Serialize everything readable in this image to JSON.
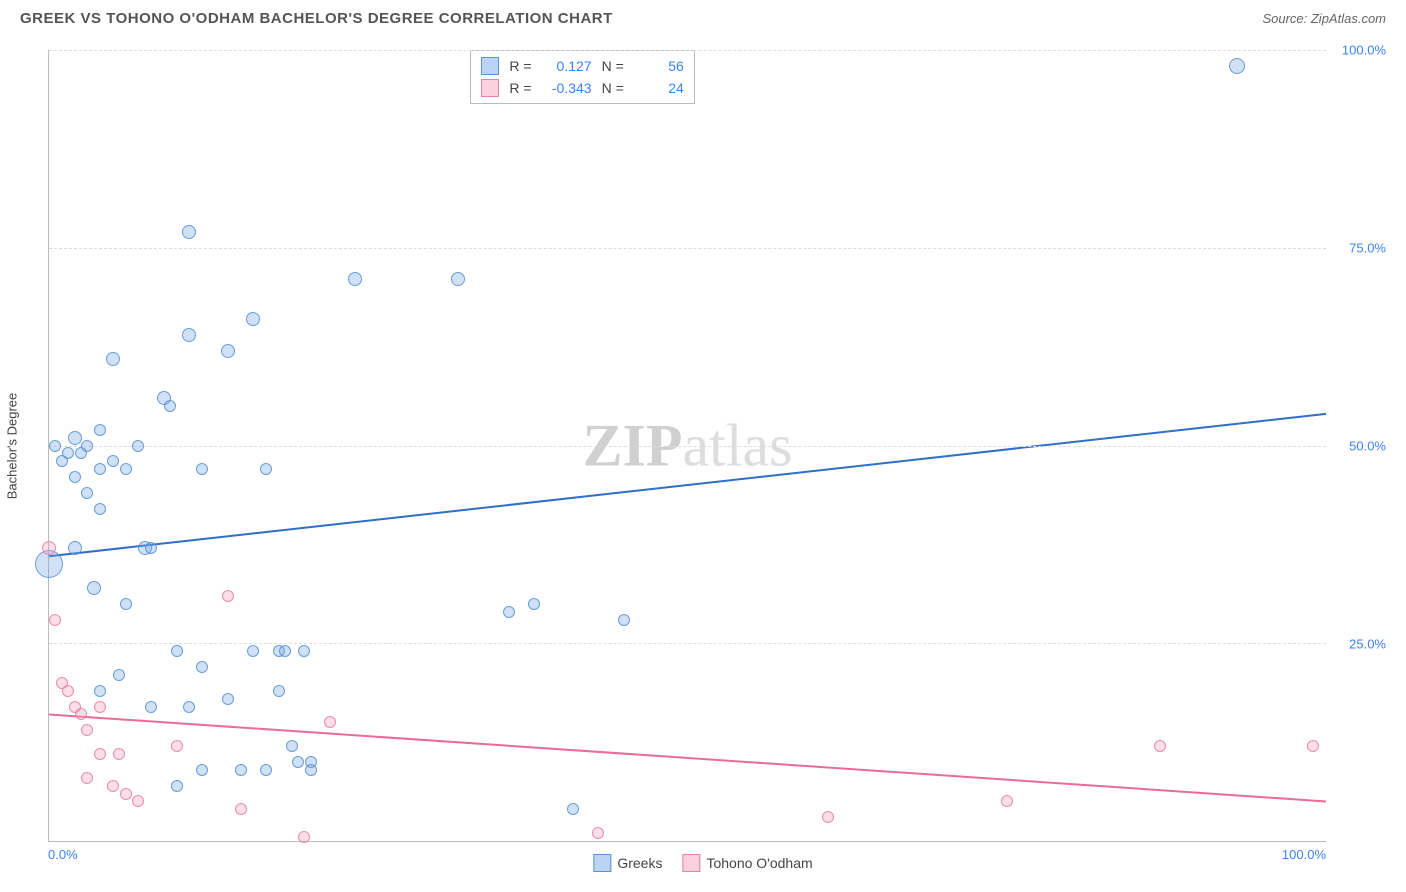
{
  "title": "GREEK VS TOHONO O'ODHAM BACHELOR'S DEGREE CORRELATION CHART",
  "source": "Source: ZipAtlas.com",
  "watermark": {
    "zip": "ZIP",
    "atlas": "atlas"
  },
  "chart": {
    "type": "scatter",
    "xlim": [
      0,
      100
    ],
    "ylim": [
      0,
      100
    ],
    "ygrid": [
      25,
      50,
      75,
      100
    ],
    "yticklabels": [
      "25.0%",
      "50.0%",
      "75.0%",
      "100.0%"
    ],
    "xtick_min": "0.0%",
    "xtick_max": "100.0%",
    "y_axis_title": "Bachelor's Degree",
    "colors": {
      "blue_fill": "rgba(120,170,230,0.35)",
      "blue_stroke": "rgba(80,140,210,0.8)",
      "pink_fill": "rgba(245,160,190,0.35)",
      "pink_stroke": "rgba(230,120,160,0.8)",
      "trend_blue": "#2f6fc4",
      "trend_pink": "#ea6a9a",
      "grid": "#dddddd",
      "axis": "#bbbbbb",
      "tick_text": "#3b82f6"
    },
    "series": [
      {
        "name": "Greeks",
        "cls": "blue",
        "R_label": "R =",
        "R": "0.127",
        "N_label": "N =",
        "N": "56",
        "trend": {
          "y_at_x0": 36,
          "y_at_x100": 54
        },
        "points": [
          {
            "x": 0,
            "y": 35,
            "r": 14
          },
          {
            "x": 0.5,
            "y": 50,
            "r": 6
          },
          {
            "x": 1,
            "y": 48,
            "r": 6
          },
          {
            "x": 1.5,
            "y": 49,
            "r": 6
          },
          {
            "x": 2,
            "y": 51,
            "r": 7
          },
          {
            "x": 2.5,
            "y": 49,
            "r": 6
          },
          {
            "x": 2,
            "y": 37,
            "r": 7
          },
          {
            "x": 2,
            "y": 46,
            "r": 6
          },
          {
            "x": 3,
            "y": 44,
            "r": 6
          },
          {
            "x": 3,
            "y": 50,
            "r": 6
          },
          {
            "x": 3.5,
            "y": 32,
            "r": 7
          },
          {
            "x": 4,
            "y": 52,
            "r": 6
          },
          {
            "x": 4,
            "y": 47,
            "r": 6
          },
          {
            "x": 4,
            "y": 42,
            "r": 6
          },
          {
            "x": 4,
            "y": 19,
            "r": 6
          },
          {
            "x": 5,
            "y": 61,
            "r": 7
          },
          {
            "x": 5,
            "y": 48,
            "r": 6
          },
          {
            "x": 5.5,
            "y": 21,
            "r": 6
          },
          {
            "x": 6,
            "y": 47,
            "r": 6
          },
          {
            "x": 6,
            "y": 30,
            "r": 6
          },
          {
            "x": 7,
            "y": 50,
            "r": 6
          },
          {
            "x": 7.5,
            "y": 37,
            "r": 7
          },
          {
            "x": 8,
            "y": 37,
            "r": 6
          },
          {
            "x": 8,
            "y": 17,
            "r": 6
          },
          {
            "x": 9,
            "y": 56,
            "r": 7
          },
          {
            "x": 9.5,
            "y": 55,
            "r": 6
          },
          {
            "x": 10,
            "y": 24,
            "r": 6
          },
          {
            "x": 10,
            "y": 7,
            "r": 6
          },
          {
            "x": 11,
            "y": 77,
            "r": 7
          },
          {
            "x": 11,
            "y": 64,
            "r": 7
          },
          {
            "x": 11,
            "y": 17,
            "r": 6
          },
          {
            "x": 12,
            "y": 22,
            "r": 6
          },
          {
            "x": 12,
            "y": 47,
            "r": 6
          },
          {
            "x": 12,
            "y": 9,
            "r": 6
          },
          {
            "x": 14,
            "y": 62,
            "r": 7
          },
          {
            "x": 14,
            "y": 18,
            "r": 6
          },
          {
            "x": 15,
            "y": 9,
            "r": 6
          },
          {
            "x": 16,
            "y": 66,
            "r": 7
          },
          {
            "x": 16,
            "y": 24,
            "r": 6
          },
          {
            "x": 17,
            "y": 47,
            "r": 6
          },
          {
            "x": 17,
            "y": 9,
            "r": 6
          },
          {
            "x": 18,
            "y": 19,
            "r": 6
          },
          {
            "x": 18,
            "y": 24,
            "r": 6
          },
          {
            "x": 18.5,
            "y": 24,
            "r": 6
          },
          {
            "x": 19,
            "y": 12,
            "r": 6
          },
          {
            "x": 19.5,
            "y": 10,
            "r": 6
          },
          {
            "x": 20,
            "y": 24,
            "r": 6
          },
          {
            "x": 20.5,
            "y": 10,
            "r": 6
          },
          {
            "x": 20.5,
            "y": 9,
            "r": 6
          },
          {
            "x": 24,
            "y": 71,
            "r": 7
          },
          {
            "x": 32,
            "y": 71,
            "r": 7
          },
          {
            "x": 36,
            "y": 29,
            "r": 6
          },
          {
            "x": 38,
            "y": 30,
            "r": 6
          },
          {
            "x": 41,
            "y": 4,
            "r": 6
          },
          {
            "x": 45,
            "y": 28,
            "r": 6
          },
          {
            "x": 93,
            "y": 98,
            "r": 8
          }
        ]
      },
      {
        "name": "Tohono O'odham",
        "cls": "pink",
        "R_label": "R =",
        "R": "-0.343",
        "N_label": "N =",
        "N": "24",
        "trend": {
          "y_at_x0": 16,
          "y_at_x100": 5
        },
        "points": [
          {
            "x": 0,
            "y": 37,
            "r": 7
          },
          {
            "x": 0.5,
            "y": 28,
            "r": 6
          },
          {
            "x": 1,
            "y": 20,
            "r": 6
          },
          {
            "x": 1.5,
            "y": 19,
            "r": 6
          },
          {
            "x": 2,
            "y": 17,
            "r": 6
          },
          {
            "x": 2.5,
            "y": 16,
            "r": 6
          },
          {
            "x": 3,
            "y": 14,
            "r": 6
          },
          {
            "x": 3,
            "y": 8,
            "r": 6
          },
          {
            "x": 4,
            "y": 11,
            "r": 6
          },
          {
            "x": 4,
            "y": 17,
            "r": 6
          },
          {
            "x": 5,
            "y": 7,
            "r": 6
          },
          {
            "x": 5.5,
            "y": 11,
            "r": 6
          },
          {
            "x": 6,
            "y": 6,
            "r": 6
          },
          {
            "x": 7,
            "y": 5,
            "r": 6
          },
          {
            "x": 10,
            "y": 12,
            "r": 6
          },
          {
            "x": 14,
            "y": 31,
            "r": 6
          },
          {
            "x": 15,
            "y": 4,
            "r": 6
          },
          {
            "x": 20,
            "y": 0.5,
            "r": 6
          },
          {
            "x": 22,
            "y": 15,
            "r": 6
          },
          {
            "x": 43,
            "y": 1,
            "r": 6
          },
          {
            "x": 61,
            "y": 3,
            "r": 6
          },
          {
            "x": 75,
            "y": 5,
            "r": 6
          },
          {
            "x": 87,
            "y": 12,
            "r": 6
          },
          {
            "x": 99,
            "y": 12,
            "r": 6
          }
        ]
      }
    ]
  },
  "legend_bottom": {
    "items": [
      {
        "cls": "blue",
        "label": "Greeks"
      },
      {
        "cls": "pink",
        "label": "Tohono O'odham"
      }
    ]
  }
}
